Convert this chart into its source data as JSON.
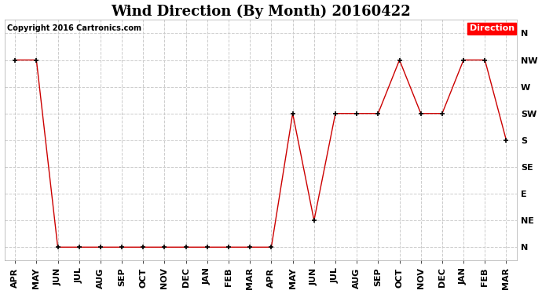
{
  "title": "Wind Direction (By Month) 20160422",
  "copyright_text": "Copyright 2016 Cartronics.com",
  "legend_label": "Direction",
  "legend_bg": "#ff0000",
  "legend_text_color": "#ffffff",
  "months": [
    "APR",
    "MAY",
    "JUN",
    "JUL",
    "AUG",
    "SEP",
    "OCT",
    "NOV",
    "DEC",
    "JAN",
    "FEB",
    "MAR",
    "APR",
    "MAY",
    "JUN",
    "JUL",
    "AUG",
    "SEP",
    "OCT",
    "NOV",
    "DEC",
    "JAN",
    "FEB",
    "MAR"
  ],
  "direction_labels": [
    "N",
    "NE",
    "E",
    "SE",
    "S",
    "SW",
    "W",
    "NW",
    "N"
  ],
  "direction_values": [
    0,
    1,
    2,
    3,
    4,
    5,
    6,
    7,
    8
  ],
  "wind_data": [
    7,
    7,
    0,
    0,
    0,
    0,
    0,
    0,
    0,
    0,
    0,
    0,
    0,
    5,
    1,
    5,
    5,
    5,
    7,
    5,
    5,
    7,
    7,
    4
  ],
  "line_color": "#cc0000",
  "marker": "+",
  "bg_color": "#ffffff",
  "plot_bg_color": "#ffffff",
  "grid_color": "#cccccc",
  "title_fontsize": 13,
  "tick_fontsize": 8,
  "copyright_fontsize": 7
}
